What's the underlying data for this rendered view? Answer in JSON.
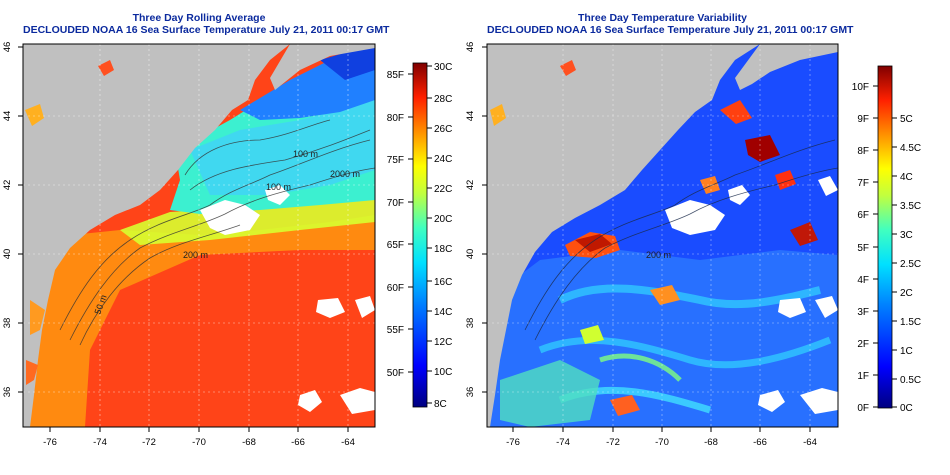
{
  "left_panel": {
    "title_line1": "Three Day Rolling Average",
    "title_line2": "DECLOUDED NOAA 16 Sea Surface Temperature July 21, 2011 00:17 GMT",
    "y_ticks": [
      "46",
      "44",
      "42",
      "40",
      "38",
      "36"
    ],
    "x_ticks": [
      "-76",
      "-74",
      "-72",
      "-70",
      "-68",
      "-66",
      "-64"
    ],
    "contour_labels": [
      "100 m",
      "2000 m",
      "100 m",
      "200 m",
      "50 m"
    ],
    "colorbar_f_labels": [
      "85F",
      "80F",
      "75F",
      "70F",
      "65F",
      "60F",
      "55F",
      "50F"
    ],
    "colorbar_c_labels": [
      "30C",
      "28C",
      "26C",
      "24C",
      "22C",
      "20C",
      "18C",
      "16C",
      "14C",
      "12C",
      "10C",
      "8C"
    ]
  },
  "right_panel": {
    "title_line1": "Three Day Temperature Variability",
    "title_line2": "DECLOUDED NOAA 16 Sea Surface Temperature July 21, 2011 00:17 GMT",
    "y_ticks": [
      "46",
      "44",
      "42",
      "40",
      "38",
      "36"
    ],
    "x_ticks": [
      "-76",
      "-74",
      "-72",
      "-70",
      "-68",
      "-66",
      "-64"
    ],
    "contour_labels": [
      "200 m"
    ],
    "colorbar_f_labels": [
      "10F",
      "9F",
      "8F",
      "7F",
      "6F",
      "5F",
      "4F",
      "3F",
      "2F",
      "1F",
      "0F"
    ],
    "colorbar_c_labels": [
      "5C",
      "4.5C",
      "4C",
      "3.5C",
      "3C",
      "2.5C",
      "2C",
      "1.5C",
      "1C",
      "0.5C",
      "0C"
    ]
  },
  "colors": {
    "title": "#0b2a9e",
    "land": "#c0c0c0",
    "cloud_mask": "#ffffff"
  }
}
